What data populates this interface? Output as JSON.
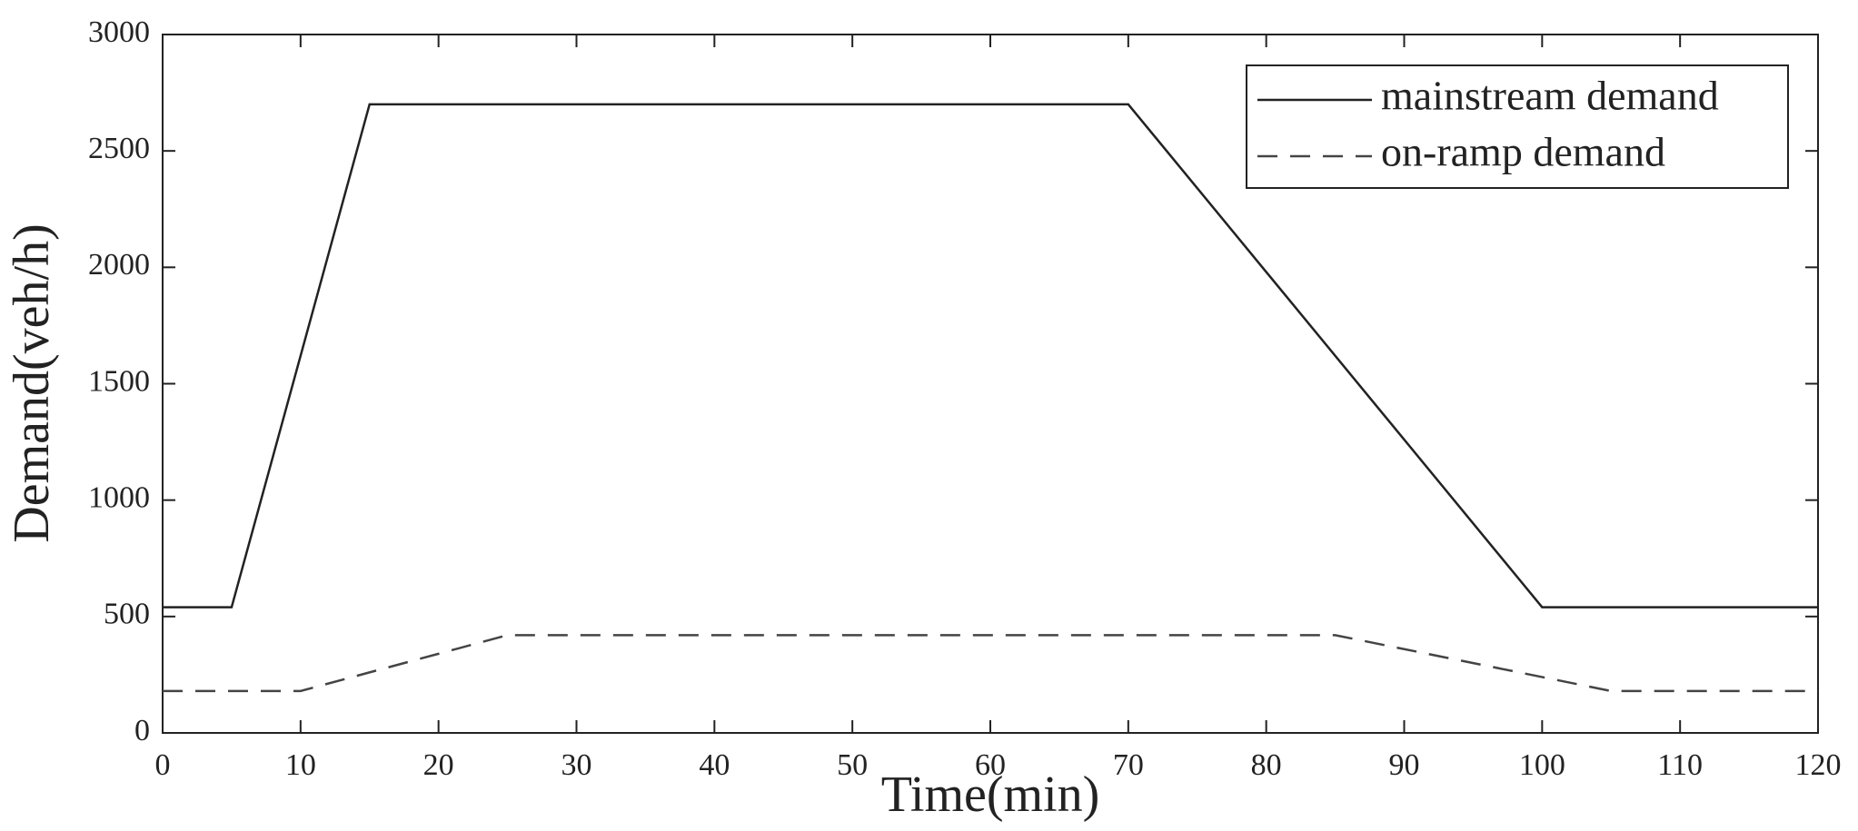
{
  "chart_data": {
    "type": "line",
    "xlabel": "Time(min)",
    "ylabel": "Demand(veh/h)",
    "series": [
      {
        "name": "mainstream demand",
        "color": "#222222",
        "dash": "none",
        "x": [
          0,
          5,
          15,
          70,
          100,
          120
        ],
        "values": [
          540,
          540,
          2700,
          2700,
          540,
          540
        ]
      },
      {
        "name": "on-ramp demand",
        "color": "#444444",
        "dash": "dashed",
        "x": [
          0,
          10,
          25,
          85,
          105,
          120
        ],
        "values": [
          180,
          180,
          420,
          420,
          180,
          180
        ]
      }
    ],
    "xlim": [
      0,
      120
    ],
    "xticks": [
      0,
      10,
      20,
      30,
      40,
      50,
      60,
      70,
      80,
      90,
      100,
      110,
      120
    ],
    "ylim": [
      0,
      3000
    ],
    "yticks": [
      0,
      500,
      1000,
      1500,
      2000,
      2500,
      3000
    ],
    "grid": false,
    "legend": "upper right"
  }
}
